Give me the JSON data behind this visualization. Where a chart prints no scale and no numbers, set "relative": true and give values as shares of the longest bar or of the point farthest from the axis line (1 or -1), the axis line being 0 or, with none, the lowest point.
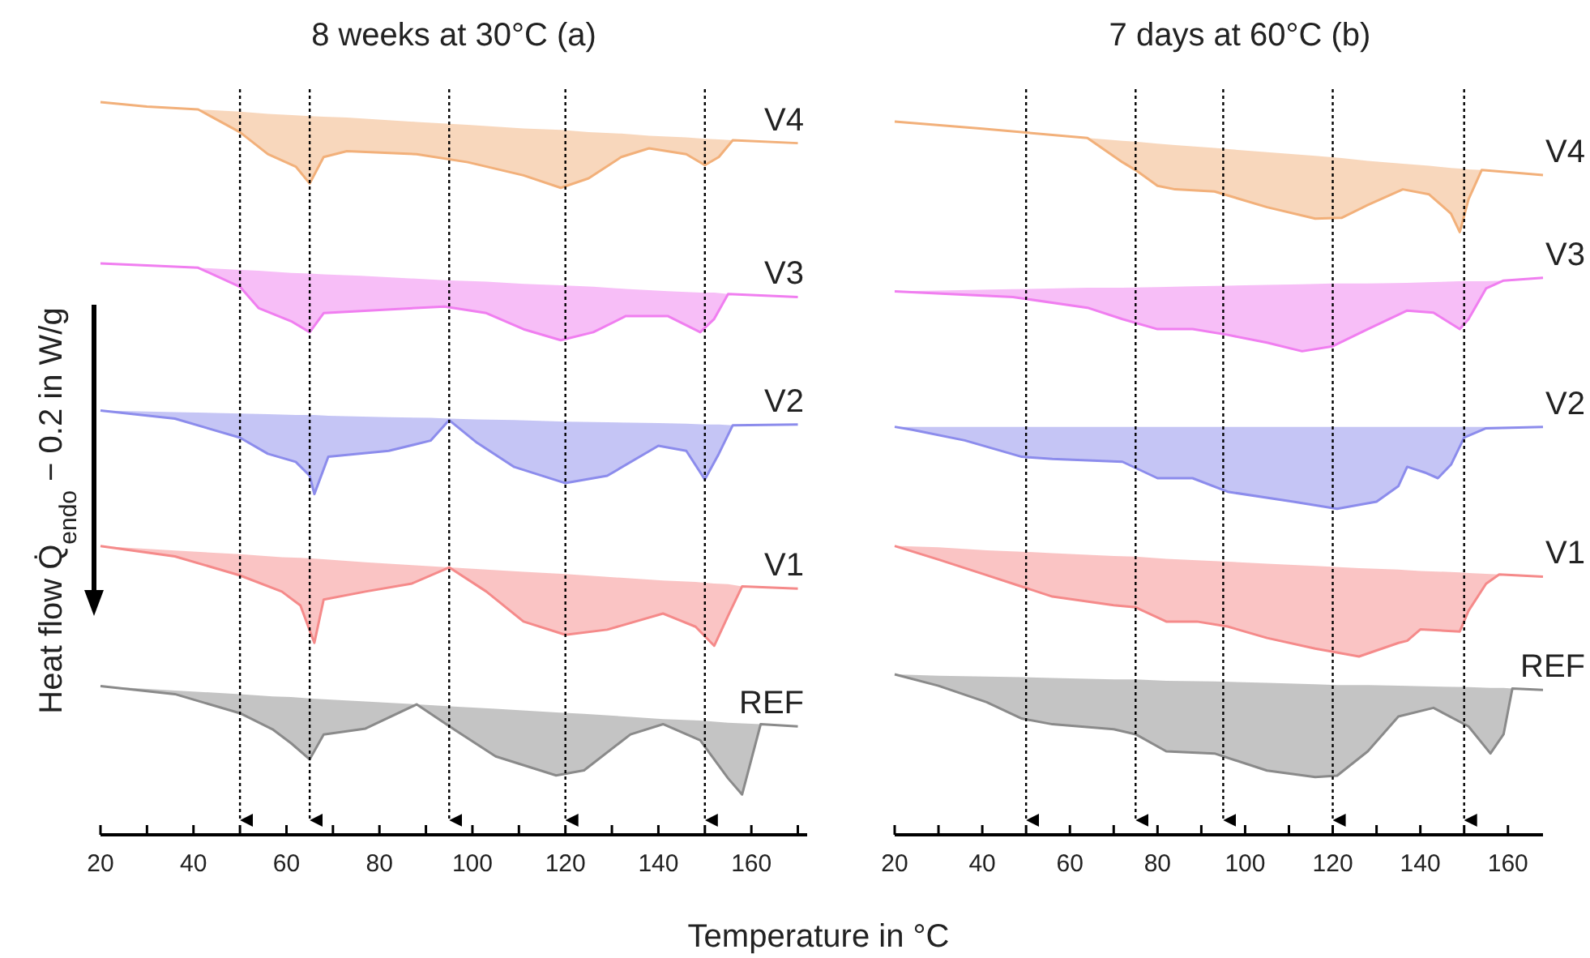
{
  "chart_data": [
    {
      "type": "line",
      "title": "8 weeks at 30°C (a)",
      "xlabel": "Temperature in °C",
      "ylabel": "Heat flow Q̇$_{endo}$ − 0.2 in W/g",
      "relative": true,
      "legend": false,
      "marker": "none",
      "xlim": [
        20,
        172
      ],
      "xticks": [
        20,
        {
          "value": 30,
          "label": null
        },
        40,
        {
          "value": 50,
          "label": null
        },
        60,
        {
          "value": 70,
          "label": null
        },
        80,
        {
          "value": 90,
          "label": null
        },
        100,
        {
          "value": 110,
          "label": null
        },
        120,
        {
          "value": 130,
          "label": null
        },
        140,
        {
          "value": 150,
          "label": null
        },
        160,
        {
          "value": 170,
          "label": null
        }
      ],
      "ref_lines": [
        {
          "axis": "x",
          "value": 50,
          "color": "#000000",
          "line_style": "dotted"
        },
        {
          "axis": "x",
          "value": 65,
          "color": "#000000",
          "line_style": "dotted"
        },
        {
          "axis": "x",
          "value": 95,
          "color": "#000000",
          "line_style": "dotted"
        },
        {
          "axis": "x",
          "value": 120,
          "color": "#000000",
          "line_style": "dotted"
        },
        {
          "axis": "x",
          "value": 150,
          "color": "#000000",
          "line_style": "dotted"
        }
      ],
      "series": [
        {
          "name": "V4",
          "color": "#f2b07a",
          "x": [
            20,
            30,
            41,
            50,
            56,
            62,
            65,
            68,
            73,
            88,
            99,
            111,
            119,
            125,
            132,
            138,
            146,
            150,
            153,
            156,
            170
          ],
          "values": [
            1,
            0.994,
            0.99,
            0.959,
            0.929,
            0.912,
            0.889,
            0.925,
            0.933,
            0.929,
            0.918,
            0.9,
            0.883,
            0.896,
            0.925,
            0.937,
            0.929,
            0.914,
            0.925,
            0.948,
            0.944
          ],
          "lower": [
            1,
            0.994,
            0.99,
            0.959,
            0.929,
            0.912,
            0.889,
            0.925,
            0.933,
            0.929,
            0.918,
            0.9,
            0.883,
            0.896,
            0.925,
            0.937,
            0.929,
            0.914,
            0.925,
            0.948,
            0.944
          ],
          "upper": [
            1,
            0.994,
            0.99,
            0.987,
            0.984,
            0.982,
            0.981,
            0.98,
            0.979,
            0.973,
            0.969,
            0.964,
            0.962,
            0.959,
            0.957,
            0.954,
            0.952,
            0.95,
            0.949,
            0.948,
            0.944
          ]
        },
        {
          "name": "V3",
          "color": "#f07ef0",
          "x": [
            20,
            41,
            50,
            54,
            61,
            65,
            68,
            76,
            94,
            103,
            111,
            119,
            126,
            133,
            142,
            149,
            152,
            155,
            170
          ],
          "values": [
            0.78,
            0.774,
            0.748,
            0.719,
            0.701,
            0.686,
            0.712,
            0.715,
            0.721,
            0.712,
            0.69,
            0.675,
            0.686,
            0.708,
            0.708,
            0.686,
            0.704,
            0.738,
            0.734
          ],
          "lower": [
            0.78,
            0.774,
            0.748,
            0.719,
            0.701,
            0.686,
            0.712,
            0.715,
            0.721,
            0.712,
            0.69,
            0.675,
            0.686,
            0.708,
            0.708,
            0.686,
            0.704,
            0.738,
            0.734
          ],
          "upper": [
            0.78,
            0.774,
            0.771,
            0.77,
            0.767,
            0.766,
            0.765,
            0.763,
            0.757,
            0.755,
            0.752,
            0.75,
            0.748,
            0.745,
            0.742,
            0.74,
            0.74,
            0.738,
            0.734
          ]
        },
        {
          "name": "V2",
          "color": "#8c8cec",
          "x": [
            20,
            36,
            50,
            56,
            62,
            65,
            66,
            69,
            82,
            91,
            95,
            101,
            109,
            120,
            129,
            140,
            146,
            150,
            153,
            156,
            170
          ],
          "values": [
            0.579,
            0.568,
            0.542,
            0.52,
            0.509,
            0.49,
            0.465,
            0.516,
            0.524,
            0.538,
            0.566,
            0.535,
            0.502,
            0.48,
            0.49,
            0.531,
            0.524,
            0.485,
            0.52,
            0.559,
            0.56
          ],
          "lower": [
            0.579,
            0.568,
            0.542,
            0.52,
            0.509,
            0.49,
            0.465,
            0.516,
            0.524,
            0.538,
            0.566,
            0.535,
            0.502,
            0.48,
            0.49,
            0.531,
            0.524,
            0.485,
            0.52,
            0.559,
            0.56
          ],
          "upper": [
            0.579,
            0.577,
            0.575,
            0.574,
            0.573,
            0.573,
            0.573,
            0.572,
            0.57,
            0.569,
            0.568,
            0.567,
            0.566,
            0.564,
            0.563,
            0.562,
            0.561,
            0.56,
            0.56,
            0.559,
            0.56
          ]
        },
        {
          "name": "V1",
          "color": "#f58a8a",
          "x": [
            20,
            36,
            50,
            59,
            63,
            66,
            68,
            77,
            87,
            95,
            103,
            111,
            120,
            129,
            141,
            148,
            152,
            155,
            158,
            170
          ],
          "values": [
            0.394,
            0.38,
            0.354,
            0.332,
            0.313,
            0.262,
            0.321,
            0.332,
            0.343,
            0.365,
            0.332,
            0.291,
            0.273,
            0.28,
            0.302,
            0.284,
            0.258,
            0.299,
            0.339,
            0.336
          ],
          "lower": [
            0.394,
            0.38,
            0.354,
            0.332,
            0.313,
            0.262,
            0.321,
            0.332,
            0.343,
            0.365,
            0.332,
            0.291,
            0.273,
            0.28,
            0.302,
            0.284,
            0.258,
            0.299,
            0.339,
            0.336
          ],
          "upper": [
            0.394,
            0.388,
            0.383,
            0.379,
            0.378,
            0.377,
            0.376,
            0.372,
            0.368,
            0.365,
            0.362,
            0.359,
            0.356,
            0.352,
            0.347,
            0.345,
            0.343,
            0.342,
            0.339,
            0.336
          ]
        },
        {
          "name": "REF",
          "color": "#8a8a8a",
          "x": [
            20,
            36,
            50,
            57,
            61,
            65,
            68,
            77,
            88,
            96,
            105,
            118,
            124,
            134,
            141,
            149,
            155,
            158,
            162,
            170
          ],
          "values": [
            0.203,
            0.192,
            0.166,
            0.144,
            0.125,
            0.103,
            0.137,
            0.145,
            0.178,
            0.144,
            0.107,
            0.081,
            0.088,
            0.137,
            0.151,
            0.129,
            0.077,
            0.055,
            0.151,
            0.148
          ],
          "lower": [
            0.203,
            0.192,
            0.166,
            0.144,
            0.125,
            0.103,
            0.137,
            0.145,
            0.178,
            0.144,
            0.107,
            0.081,
            0.088,
            0.137,
            0.151,
            0.129,
            0.077,
            0.055,
            0.151,
            0.148
          ],
          "upper": [
            0.203,
            0.197,
            0.192,
            0.189,
            0.188,
            0.186,
            0.185,
            0.182,
            0.178,
            0.175,
            0.172,
            0.167,
            0.165,
            0.161,
            0.158,
            0.156,
            0.153,
            0.152,
            0.151,
            0.148
          ]
        }
      ]
    },
    {
      "type": "line",
      "title": "7 days at 60°C (b)",
      "relative": true,
      "legend": false,
      "marker": "none",
      "xlim": [
        20,
        168
      ],
      "xticks": [
        20,
        {
          "value": 30,
          "label": null
        },
        40,
        {
          "value": 50,
          "label": null
        },
        60,
        {
          "value": 70,
          "label": null
        },
        80,
        {
          "value": 90,
          "label": null
        },
        100,
        {
          "value": 110,
          "label": null
        },
        120,
        {
          "value": 130,
          "label": null
        },
        140,
        {
          "value": 150,
          "label": null
        },
        160
      ],
      "ref_lines": [
        {
          "axis": "x",
          "value": 50,
          "color": "#000000",
          "line_style": "dotted"
        },
        {
          "axis": "x",
          "value": 75,
          "color": "#000000",
          "line_style": "dotted"
        },
        {
          "axis": "x",
          "value": 95,
          "color": "#000000",
          "line_style": "dotted"
        },
        {
          "axis": "x",
          "value": 120,
          "color": "#000000",
          "line_style": "dotted"
        },
        {
          "axis": "x",
          "value": 150,
          "color": "#000000",
          "line_style": "dotted"
        }
      ],
      "series": [
        {
          "name": "V4",
          "color": "#f2b07a",
          "x": [
            20,
            40,
            64,
            72,
            75,
            80,
            84,
            93,
            105,
            116,
            122,
            128,
            136,
            142,
            147,
            149,
            151,
            154,
            162,
            168
          ],
          "values": [
            1,
            0.99,
            0.977,
            0.943,
            0.932,
            0.91,
            0.905,
            0.902,
            0.88,
            0.864,
            0.865,
            0.883,
            0.905,
            0.898,
            0.871,
            0.845,
            0.891,
            0.932,
            0.928,
            0.925
          ],
          "lower": [
            1,
            0.99,
            0.977,
            0.943,
            0.932,
            0.91,
            0.905,
            0.902,
            0.88,
            0.864,
            0.865,
            0.883,
            0.905,
            0.898,
            0.871,
            0.845,
            0.891,
            0.932,
            0.928,
            0.925
          ],
          "upper": [
            1,
            0.99,
            0.977,
            0.973,
            0.972,
            0.969,
            0.967,
            0.963,
            0.957,
            0.952,
            0.949,
            0.945,
            0.941,
            0.938,
            0.935,
            0.934,
            0.933,
            0.932,
            0.928,
            0.925
          ]
        },
        {
          "name": "V3",
          "color": "#f07ef0",
          "x": [
            20,
            47,
            64,
            72,
            80,
            88,
            96,
            105,
            113,
            120,
            128,
            137,
            143,
            149,
            151,
            155,
            159,
            168
          ],
          "values": [
            0.762,
            0.754,
            0.739,
            0.723,
            0.709,
            0.709,
            0.701,
            0.69,
            0.678,
            0.685,
            0.709,
            0.735,
            0.732,
            0.709,
            0.723,
            0.766,
            0.777,
            0.781
          ],
          "lower": [
            0.762,
            0.754,
            0.739,
            0.723,
            0.709,
            0.709,
            0.701,
            0.69,
            0.678,
            0.685,
            0.709,
            0.735,
            0.732,
            0.709,
            0.723,
            0.766,
            0.777,
            0.781
          ],
          "upper": [
            0.762,
            0.765,
            0.767,
            0.767,
            0.768,
            0.769,
            0.77,
            0.771,
            0.772,
            0.773,
            0.773,
            0.774,
            0.775,
            0.776,
            0.776,
            0.776,
            0.777,
            0.781
          ]
        },
        {
          "name": "V2",
          "color": "#8c8cec",
          "x": [
            20,
            24,
            36,
            49,
            56,
            72,
            80,
            88,
            96,
            111,
            121,
            130,
            135,
            137,
            141,
            144,
            147,
            150,
            155,
            168
          ],
          "values": [
            0.572,
            0.568,
            0.553,
            0.53,
            0.527,
            0.523,
            0.5,
            0.5,
            0.481,
            0.467,
            0.457,
            0.467,
            0.489,
            0.516,
            0.508,
            0.5,
            0.519,
            0.557,
            0.57,
            0.572
          ],
          "lower": [
            0.572,
            0.568,
            0.553,
            0.53,
            0.527,
            0.523,
            0.5,
            0.5,
            0.481,
            0.467,
            0.457,
            0.467,
            0.489,
            0.516,
            0.508,
            0.5,
            0.519,
            0.557,
            0.57,
            0.572
          ],
          "upper": [
            0.572,
            0.572,
            0.572,
            0.572,
            0.572,
            0.572,
            0.572,
            0.572,
            0.572,
            0.572,
            0.572,
            0.572,
            0.572,
            0.572,
            0.572,
            0.572,
            0.572,
            0.572,
            0.572,
            0.572
          ]
        },
        {
          "name": "V1",
          "color": "#f58a8a",
          "x": [
            20,
            30,
            41,
            49,
            56,
            70,
            75,
            82,
            89,
            96,
            105,
            116,
            126,
            135,
            137,
            140,
            149,
            151,
            155,
            158,
            168
          ],
          "values": [
            0.405,
            0.386,
            0.364,
            0.348,
            0.334,
            0.322,
            0.319,
            0.299,
            0.299,
            0.292,
            0.276,
            0.261,
            0.25,
            0.269,
            0.272,
            0.288,
            0.285,
            0.314,
            0.352,
            0.365,
            0.362
          ],
          "lower": [
            0.405,
            0.386,
            0.364,
            0.348,
            0.334,
            0.322,
            0.319,
            0.299,
            0.299,
            0.292,
            0.276,
            0.261,
            0.25,
            0.269,
            0.272,
            0.288,
            0.285,
            0.314,
            0.352,
            0.365,
            0.362
          ],
          "upper": [
            0.405,
            0.403,
            0.399,
            0.397,
            0.395,
            0.391,
            0.39,
            0.387,
            0.385,
            0.383,
            0.38,
            0.377,
            0.374,
            0.372,
            0.371,
            0.37,
            0.368,
            0.367,
            0.366,
            0.365,
            0.362
          ]
        },
        {
          "name": "REF",
          "color": "#8a8a8a",
          "x": [
            20,
            30,
            41,
            49,
            56,
            70,
            75,
            82,
            93,
            105,
            116,
            121,
            128,
            135,
            143,
            151,
            156,
            159,
            161,
            168
          ],
          "values": [
            0.225,
            0.209,
            0.186,
            0.163,
            0.155,
            0.148,
            0.141,
            0.117,
            0.114,
            0.09,
            0.081,
            0.083,
            0.117,
            0.166,
            0.178,
            0.152,
            0.114,
            0.141,
            0.205,
            0.203
          ],
          "lower": [
            0.225,
            0.209,
            0.186,
            0.163,
            0.155,
            0.148,
            0.141,
            0.117,
            0.114,
            0.09,
            0.081,
            0.083,
            0.117,
            0.166,
            0.178,
            0.152,
            0.114,
            0.141,
            0.205,
            0.203
          ],
          "upper": [
            0.225,
            0.223,
            0.222,
            0.221,
            0.22,
            0.218,
            0.218,
            0.216,
            0.215,
            0.213,
            0.211,
            0.21,
            0.21,
            0.209,
            0.208,
            0.207,
            0.206,
            0.206,
            0.205,
            0.203
          ]
        }
      ]
    }
  ]
}
